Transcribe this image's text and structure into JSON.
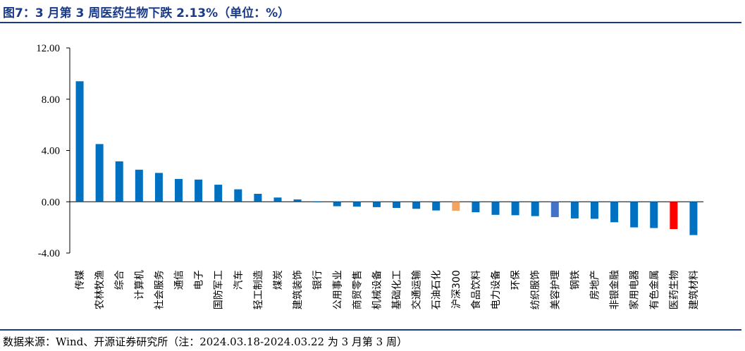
{
  "header": {
    "title": "图7：3 月第 3 周医药生物下跌 2.13%（单位：%）"
  },
  "footer": {
    "source": "数据来源：Wind、开源证券研究所（注：2024.03.18-2024.03.22 为 3 月第 3 周）"
  },
  "colors": {
    "default_bar": "#0070c0",
    "hs300_bar": "#f4a460",
    "beauty_bar": "#4472c4",
    "pharma_bar": "#ff0000",
    "title_color": "#1a3a8a"
  },
  "chart_data": {
    "type": "bar",
    "title": "",
    "xlabel": "",
    "ylabel": "",
    "ylim": [
      -4.0,
      12.0
    ],
    "yticks": [
      "12.00",
      "8.00",
      "4.00",
      "0.00",
      "-4.00"
    ],
    "ytick_values": [
      12,
      8,
      4,
      0,
      -4
    ],
    "grid": false,
    "legend": "none",
    "categories": [
      "传媒",
      "农林牧渔",
      "综合",
      "计算机",
      "社会服务",
      "通信",
      "电子",
      "国防军工",
      "汽车",
      "轻工制造",
      "煤炭",
      "建筑装饰",
      "银行",
      "公用事业",
      "商贸零售",
      "机械设备",
      "基础化工",
      "交通运输",
      "石油石化",
      "沪深300",
      "食品饮料",
      "电力设备",
      "环保",
      "纺织服饰",
      "美容护理",
      "钢铁",
      "房地产",
      "非银金融",
      "家用电器",
      "有色金属",
      "医药生物",
      "建筑材料"
    ],
    "values": [
      9.4,
      4.5,
      3.15,
      2.5,
      2.25,
      1.78,
      1.73,
      1.33,
      0.97,
      0.62,
      0.33,
      0.18,
      -0.03,
      -0.35,
      -0.38,
      -0.42,
      -0.48,
      -0.55,
      -0.68,
      -0.7,
      -0.82,
      -1.02,
      -1.05,
      -1.12,
      -1.2,
      -1.3,
      -1.33,
      -1.6,
      -2.0,
      -2.05,
      -2.13,
      -2.6
    ],
    "highlight": {
      "沪深300": "hs300_bar",
      "美容护理": "beauty_bar",
      "医药生物": "pharma_bar"
    }
  }
}
